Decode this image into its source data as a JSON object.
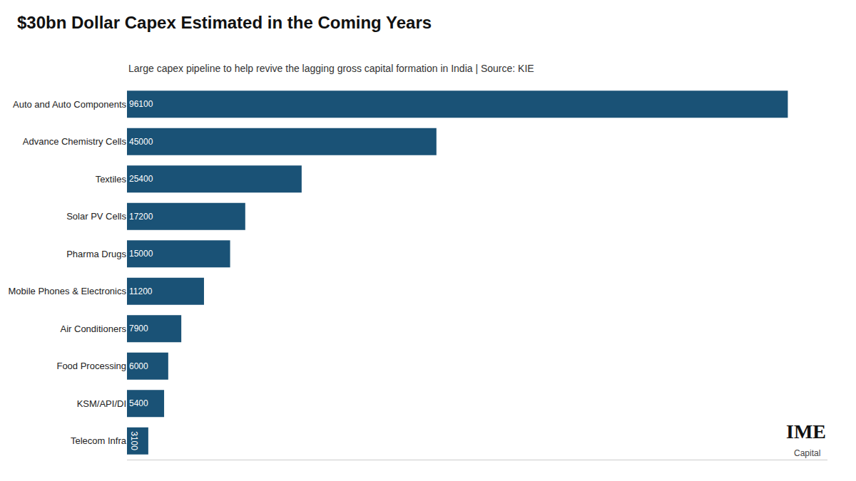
{
  "chart_data": {
    "type": "bar",
    "orientation": "horizontal",
    "title": "$30bn Dollar Capex Estimated in the Coming Years",
    "subtitle": "Large capex pipeline to help revive the lagging gross capital formation in India | Source: KIE",
    "categories": [
      "Auto and Auto Components",
      "Advance Chemistry Cells",
      "Textiles",
      "Solar PV Cells",
      "Pharma Drugs",
      "Mobile Phones & Electronics",
      "Air Conditioners",
      "Food Processing",
      "KSM/API/DI",
      "Telecom Infra"
    ],
    "values": [
      96100,
      45000,
      25400,
      17200,
      15000,
      11200,
      7900,
      6000,
      5400,
      3100
    ],
    "color": "#1a5276",
    "xlim": [
      0,
      101866
    ],
    "data_labels": true,
    "tick_labels": "y",
    "grid": false,
    "annotations": [
      "IME",
      "Capital"
    ]
  }
}
